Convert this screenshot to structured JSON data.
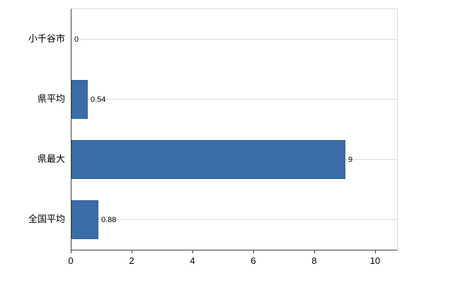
{
  "chart_data": {
    "type": "bar",
    "orientation": "horizontal",
    "title": "",
    "xlabel": "",
    "ylabel": "",
    "categories": [
      "小千谷市",
      "県平均",
      "県最大",
      "全国平均"
    ],
    "values": [
      0,
      0.54,
      9,
      0.88
    ],
    "value_labels": [
      "0",
      "0.54",
      "9",
      "0.88"
    ],
    "x_ticks": [
      "0",
      "2",
      "4",
      "6",
      "8",
      "10"
    ],
    "x_tick_values": [
      0,
      2,
      4,
      6,
      8,
      10
    ],
    "xlim": [
      0,
      10.7
    ],
    "grid": true,
    "legend": false,
    "bar_color": "#3a6ca8",
    "grid_color": "#d9d9d9",
    "axis_color": "#404040"
  }
}
